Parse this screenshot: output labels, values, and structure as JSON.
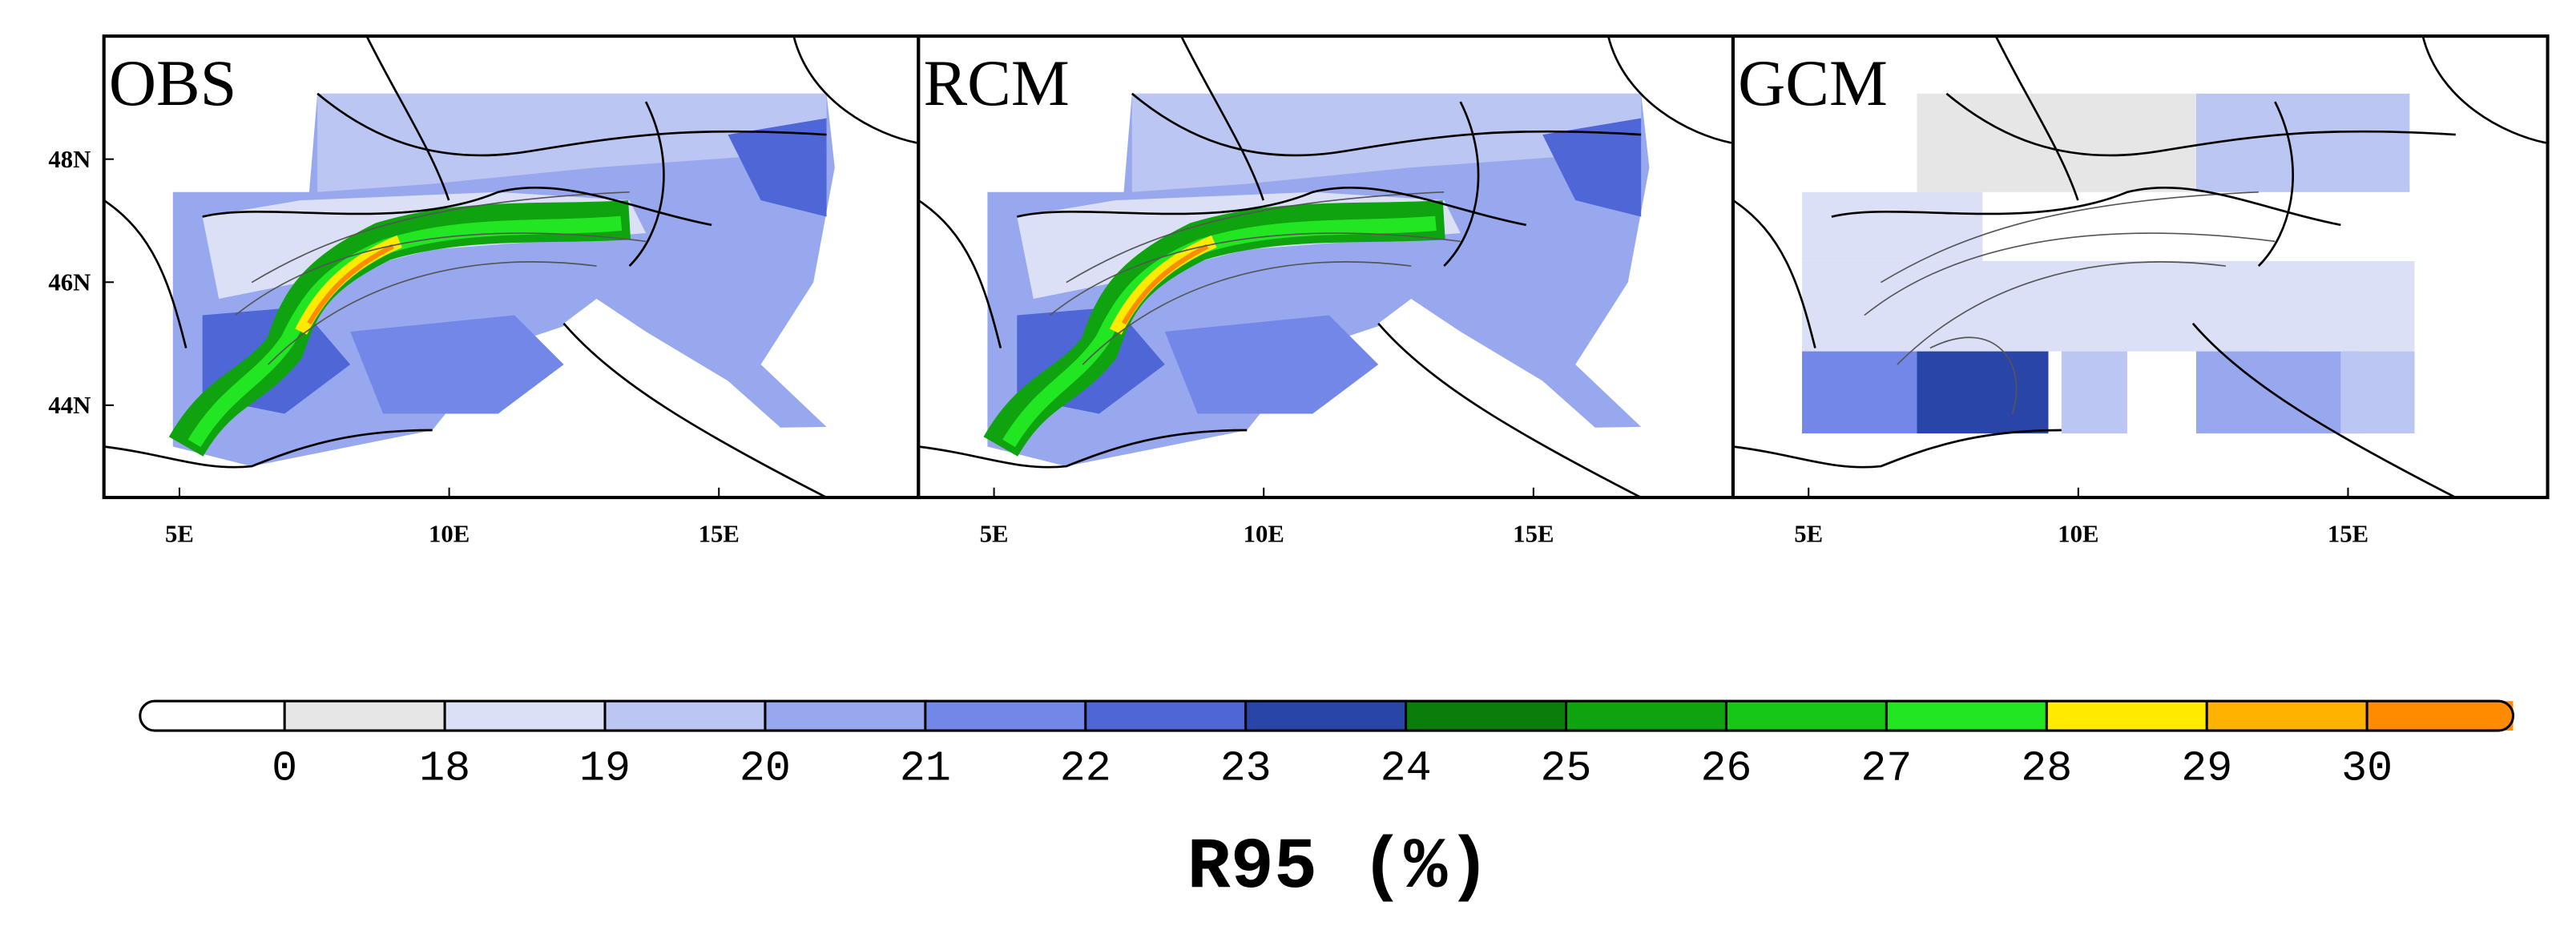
{
  "panels": [
    {
      "title": "OBS"
    },
    {
      "title": "RCM"
    },
    {
      "title": "GCM"
    }
  ],
  "xlim": [
    3.6,
    18.7
  ],
  "ylim": [
    42.5,
    50
  ],
  "xticks": [
    {
      "value": 5,
      "label": "5E"
    },
    {
      "value": 10,
      "label": "10E"
    },
    {
      "value": 15,
      "label": "15E"
    }
  ],
  "yticks": [
    {
      "value": 48,
      "label": "48N"
    },
    {
      "value": 46,
      "label": "46N"
    },
    {
      "value": 44,
      "label": "44N"
    }
  ],
  "colorbar": {
    "title": "R95 (%)",
    "levels": [
      0,
      18,
      19,
      20,
      21,
      22,
      23,
      24,
      25,
      26,
      27,
      28,
      29,
      30
    ],
    "colors": [
      "#ffffff",
      "#e6e6e6",
      "#dce0f7",
      "#bcc6f3",
      "#97a8ee",
      "#7387e9",
      "#4e66d6",
      "#2a45a8",
      "#0a7d0a",
      "#0fa30f",
      "#17c717",
      "#22e622",
      "#ffea00",
      "#ffb300",
      "#ff8c00"
    ]
  }
}
